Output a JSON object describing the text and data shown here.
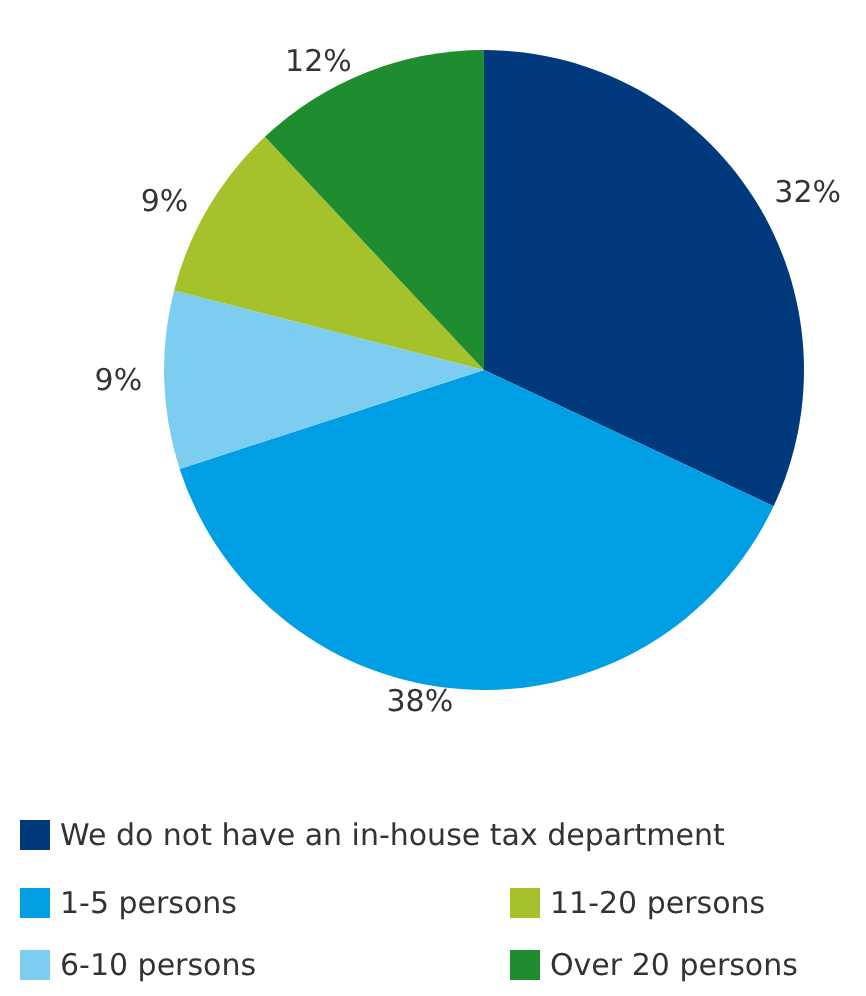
{
  "chart_data": {
    "type": "pie",
    "categories": [
      "We do not have an in-house tax department",
      "1-5 persons",
      "6-10 persons",
      "11-20 persons",
      "Over 20 persons"
    ],
    "values": [
      32,
      38,
      9,
      9,
      12
    ],
    "value_labels": [
      "32%",
      "38%",
      "9%",
      "9%",
      "12%"
    ],
    "colors": [
      "#003a7d",
      "#009fe3",
      "#7dcdf0",
      "#a5c22c",
      "#1e8c2f"
    ],
    "legend": "bottom"
  }
}
